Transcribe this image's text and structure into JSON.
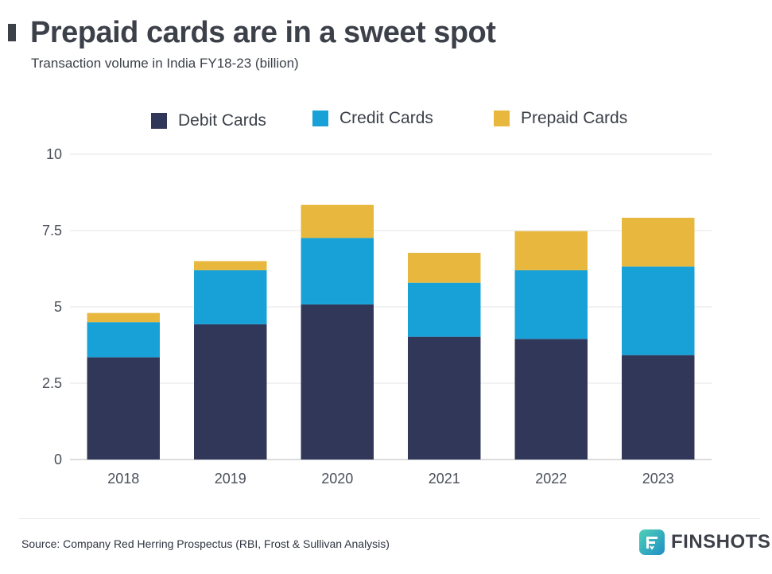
{
  "header": {
    "title": "Prepaid cards are in a sweet spot",
    "subtitle": "Transaction volume in India FY18-23 (billion)"
  },
  "legend": [
    {
      "label": "Debit Cards",
      "color": "#313759"
    },
    {
      "label": "Credit Cards",
      "color": "#17a1d6"
    },
    {
      "label": "Prepaid Cards",
      "color": "#e8b83e"
    }
  ],
  "chart_data": {
    "type": "bar",
    "stacked": true,
    "categories": [
      "2018",
      "2019",
      "2020",
      "2021",
      "2022",
      "2023"
    ],
    "series": [
      {
        "name": "Debit Cards",
        "color": "#313759",
        "values": [
          3.35,
          4.43,
          5.08,
          4.02,
          3.95,
          3.42
        ]
      },
      {
        "name": "Credit Cards",
        "color": "#17a1d6",
        "values": [
          1.15,
          1.77,
          2.18,
          1.77,
          2.25,
          2.9
        ]
      },
      {
        "name": "Prepaid Cards",
        "color": "#e8b83e",
        "values": [
          0.3,
          0.3,
          1.08,
          0.98,
          1.28,
          1.6
        ]
      }
    ],
    "yticks": [
      0,
      2.5,
      5,
      7.5,
      10
    ],
    "ytick_labels": [
      "0",
      "2.5",
      "5",
      "7.5",
      "10"
    ],
    "ylim": [
      0,
      10
    ],
    "grid": true,
    "legend_position": "top"
  },
  "footer": {
    "source": "Source: Company Red Herring Prospectus (RBI, Frost & Sullivan Analysis)",
    "brand": "FINSHOTS"
  }
}
